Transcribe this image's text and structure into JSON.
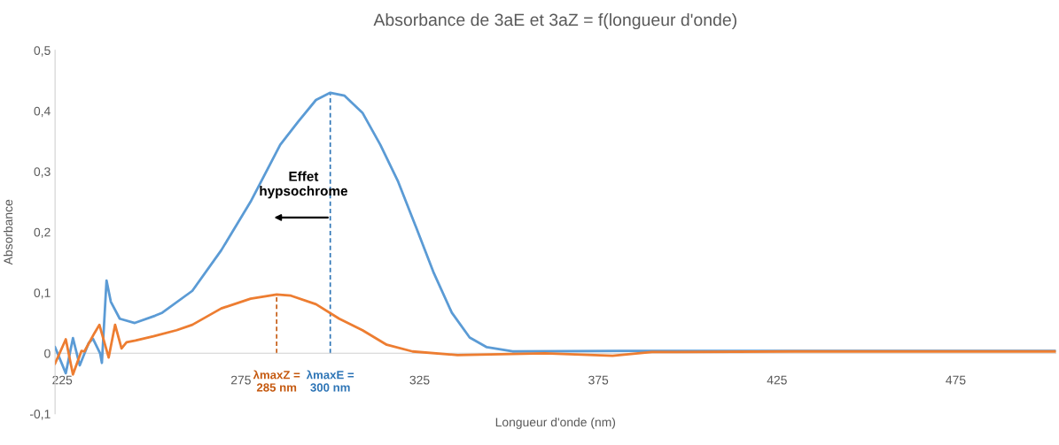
{
  "chart_data": {
    "type": "line",
    "title": "Absorbance de 3aE et 3aZ = f(longueur d'onde)",
    "xlabel": "Longueur d'onde (nm)",
    "ylabel": "Absorbance",
    "xlim": [
      223,
      503
    ],
    "xticks": [
      225,
      275,
      325,
      375,
      425,
      475
    ],
    "ylim": [
      -0.1,
      0.5
    ],
    "yticks": [
      {
        "value": -0.1,
        "label": "-0,1"
      },
      0,
      {
        "value": 0.1,
        "label": "0,1"
      },
      {
        "value": 0.2,
        "label": "0,2"
      },
      {
        "value": 0.3,
        "label": "0,3"
      },
      {
        "value": 0.4,
        "label": "0,4"
      },
      {
        "value": 0.5,
        "label": "0,5"
      }
    ],
    "grid": false,
    "marker": "none",
    "line_style": "solid",
    "series": [
      {
        "color": "#5b9bd5",
        "x": [
          223,
          226,
          228,
          229.9,
          232.4,
          233.6,
          235.6,
          236.1,
          237.4,
          238.6,
          241.1,
          245.3,
          251,
          253,
          261.4,
          269.5,
          277.7,
          286,
          291,
          296,
          300,
          304,
          309,
          314,
          319,
          324,
          329,
          334,
          339,
          343.8,
          351,
          381,
          430,
          503
        ],
        "values": [
          0.01,
          -0.033,
          0.025,
          -0.02,
          0.017,
          0.024,
          0,
          -0.016,
          0.12,
          0.085,
          0.057,
          0.05,
          0.062,
          0.067,
          0.103,
          0.17,
          0.25,
          0.344,
          0.382,
          0.418,
          0.43,
          0.425,
          0.397,
          0.344,
          0.283,
          0.208,
          0.132,
          0.067,
          0.026,
          0.01,
          0.003,
          0.004,
          0.004,
          0.004
        ]
      },
      {
        "color": "#ed7d31",
        "x": [
          223,
          226,
          228,
          230.4,
          231.2,
          234,
          235.4,
          238,
          239.8,
          241.6,
          243,
          245.5,
          250.5,
          257,
          261.4,
          269.5,
          277.7,
          285,
          289,
          296,
          302.5,
          309,
          315.8,
          323,
          335.6,
          360,
          379,
          390,
          430,
          503
        ],
        "values": [
          -0.017,
          0.023,
          -0.035,
          0.004,
          0.003,
          0.033,
          0.047,
          -0.007,
          0.047,
          0.008,
          0.018,
          0.021,
          0.028,
          0.038,
          0.047,
          0.074,
          0.09,
          0.097,
          0.095,
          0.081,
          0.057,
          0.038,
          0.014,
          0.003,
          -0.003,
          0.0,
          -0.004,
          0.002,
          0.003,
          0.003
        ]
      }
    ],
    "ref_lines": [
      {
        "axis": "x",
        "value": 285,
        "label": "λmaxZ =\n285 nm",
        "color": "#c55a11",
        "line_style": "dashed"
      },
      {
        "axis": "x",
        "value": 300,
        "label": "λmaxE =\n300 nm",
        "color": "#2e75b6",
        "line_style": "dashed"
      }
    ],
    "annotations": [
      "Effet\nhypsochrome"
    ]
  }
}
